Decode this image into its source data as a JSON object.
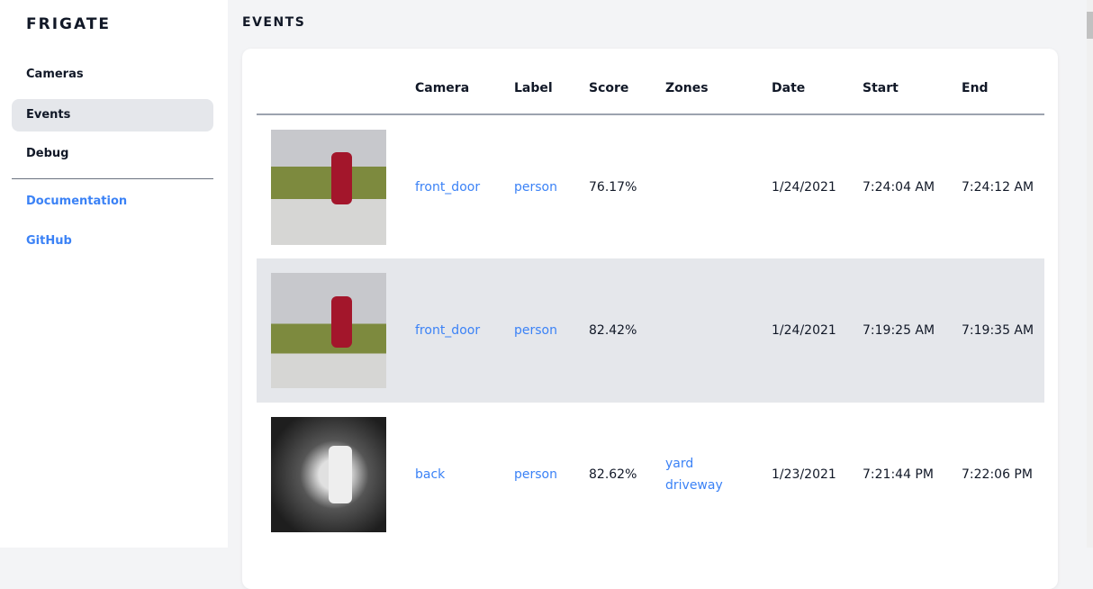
{
  "sidebar": {
    "brand": "FRIGATE",
    "items": [
      {
        "label": "Cameras"
      },
      {
        "label": "Events"
      },
      {
        "label": "Debug"
      }
    ],
    "links": [
      {
        "label": "Documentation"
      },
      {
        "label": "GitHub"
      }
    ]
  },
  "main": {
    "title": "EVENTS",
    "columns": [
      "",
      "Camera",
      "Label",
      "Score",
      "Zones",
      "Date",
      "Start",
      "End"
    ],
    "rows": [
      {
        "camera": "front_door",
        "label": "person",
        "score": "76.17%",
        "zones": [
          "",
          ""
        ],
        "date": "1/24/2021",
        "start": "7:24:04 AM",
        "end": "7:24:12 AM"
      },
      {
        "camera": "front_door",
        "label": "person",
        "score": "82.42%",
        "zones": [
          "",
          ""
        ],
        "date": "1/24/2021",
        "start": "7:19:25 AM",
        "end": "7:19:35 AM"
      },
      {
        "camera": "back",
        "label": "person",
        "score": "82.62%",
        "zones": [
          "yard",
          "driveway"
        ],
        "date": "1/23/2021",
        "start": "7:21:44 PM",
        "end": "7:22:06 PM"
      }
    ]
  },
  "colors": {
    "accent": "#3b82f6",
    "active_bg": "#e5e7eb",
    "page_bg": "#f3f4f6"
  }
}
